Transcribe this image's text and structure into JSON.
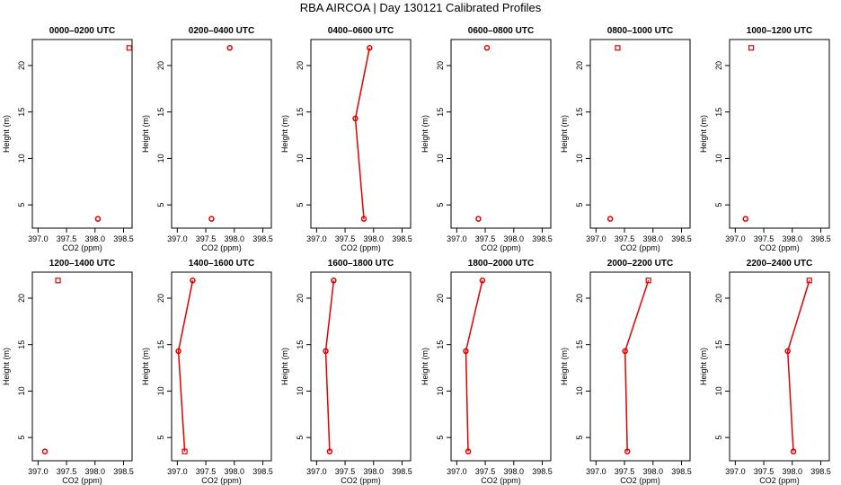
{
  "figure": {
    "title": "RBA AIRCOA  |  Day 130121  Calibrated Profiles",
    "series_color": "#e00000"
  },
  "chart_data": [
    {
      "type": "line",
      "title": "0000–0200 UTC",
      "xlabel": "CO2 (ppm)",
      "ylabel": "Height (m)",
      "xlim": [
        396.9,
        398.65
      ],
      "ylim": [
        2.5,
        22.8
      ],
      "xticks": [
        397.0,
        397.5,
        398.0,
        398.5
      ],
      "yticks": [
        5,
        10,
        15,
        20
      ],
      "points": [
        {
          "x": 398.6,
          "y": 21.9,
          "marker": "square"
        },
        {
          "x": 398.05,
          "y": 3.5,
          "marker": "circle"
        }
      ],
      "connected": false
    },
    {
      "type": "line",
      "title": "0200–0400 UTC",
      "xlabel": "CO2 (ppm)",
      "ylabel": "Height (m)",
      "xlim": [
        396.9,
        398.65
      ],
      "ylim": [
        2.5,
        22.8
      ],
      "xticks": [
        397.0,
        397.5,
        398.0,
        398.5
      ],
      "yticks": [
        5,
        10,
        15,
        20
      ],
      "points": [
        {
          "x": 397.92,
          "y": 21.9,
          "marker": "circle"
        },
        {
          "x": 397.6,
          "y": 3.5,
          "marker": "circle"
        }
      ],
      "connected": false
    },
    {
      "type": "line",
      "title": "0400–0600 UTC",
      "xlabel": "CO2 (ppm)",
      "ylabel": "Height (m)",
      "xlim": [
        396.9,
        398.65
      ],
      "ylim": [
        2.5,
        22.8
      ],
      "xticks": [
        397.0,
        397.5,
        398.0,
        398.5
      ],
      "yticks": [
        5,
        10,
        15,
        20
      ],
      "points": [
        {
          "x": 397.93,
          "y": 21.9,
          "marker": "circle"
        },
        {
          "x": 397.68,
          "y": 14.3,
          "marker": "circle"
        },
        {
          "x": 397.83,
          "y": 3.5,
          "marker": "circle"
        }
      ],
      "connected": true
    },
    {
      "type": "line",
      "title": "0600–0800 UTC",
      "xlabel": "CO2 (ppm)",
      "ylabel": "Height (m)",
      "xlim": [
        396.9,
        398.65
      ],
      "ylim": [
        2.5,
        22.8
      ],
      "xticks": [
        397.0,
        397.5,
        398.0,
        398.5
      ],
      "yticks": [
        5,
        10,
        15,
        20
      ],
      "points": [
        {
          "x": 397.53,
          "y": 21.9,
          "marker": "circle"
        },
        {
          "x": 397.38,
          "y": 3.5,
          "marker": "circle"
        }
      ],
      "connected": false
    },
    {
      "type": "line",
      "title": "0800–1000 UTC",
      "xlabel": "CO2 (ppm)",
      "ylabel": "Height (m)",
      "xlim": [
        396.9,
        398.65
      ],
      "ylim": [
        2.5,
        22.8
      ],
      "xticks": [
        397.0,
        397.5,
        398.0,
        398.5
      ],
      "yticks": [
        5,
        10,
        15,
        20
      ],
      "points": [
        {
          "x": 397.38,
          "y": 21.9,
          "marker": "square"
        },
        {
          "x": 397.25,
          "y": 3.5,
          "marker": "circle"
        }
      ],
      "connected": false
    },
    {
      "type": "line",
      "title": "1000–1200 UTC",
      "xlabel": "CO2 (ppm)",
      "ylabel": "Height (m)",
      "xlim": [
        396.9,
        398.65
      ],
      "ylim": [
        2.5,
        22.8
      ],
      "xticks": [
        397.0,
        397.5,
        398.0,
        398.5
      ],
      "yticks": [
        5,
        10,
        15,
        20
      ],
      "points": [
        {
          "x": 397.28,
          "y": 21.9,
          "marker": "square"
        },
        {
          "x": 397.18,
          "y": 3.5,
          "marker": "circle"
        }
      ],
      "connected": false
    },
    {
      "type": "line",
      "title": "1200–1400 UTC",
      "xlabel": "CO2 (ppm)",
      "ylabel": "Height (m)",
      "xlim": [
        396.9,
        398.65
      ],
      "ylim": [
        2.5,
        22.8
      ],
      "xticks": [
        397.0,
        397.5,
        398.0,
        398.5
      ],
      "yticks": [
        5,
        10,
        15,
        20
      ],
      "points": [
        {
          "x": 397.35,
          "y": 21.9,
          "marker": "square"
        },
        {
          "x": 397.12,
          "y": 3.5,
          "marker": "circle"
        }
      ],
      "connected": false
    },
    {
      "type": "line",
      "title": "1400–1600 UTC",
      "xlabel": "CO2 (ppm)",
      "ylabel": "Height (m)",
      "xlim": [
        396.9,
        398.65
      ],
      "ylim": [
        2.5,
        22.8
      ],
      "xticks": [
        397.0,
        397.5,
        398.0,
        398.5
      ],
      "yticks": [
        5,
        10,
        15,
        20
      ],
      "points": [
        {
          "x": 397.27,
          "y": 21.9,
          "marker": "circle"
        },
        {
          "x": 397.02,
          "y": 14.3,
          "marker": "circle"
        },
        {
          "x": 397.13,
          "y": 3.5,
          "marker": "square"
        }
      ],
      "connected": true
    },
    {
      "type": "line",
      "title": "1600–1800 UTC",
      "xlabel": "CO2 (ppm)",
      "ylabel": "Height (m)",
      "xlim": [
        396.9,
        398.65
      ],
      "ylim": [
        2.5,
        22.8
      ],
      "xticks": [
        397.0,
        397.5,
        398.0,
        398.5
      ],
      "yticks": [
        5,
        10,
        15,
        20
      ],
      "points": [
        {
          "x": 397.3,
          "y": 21.9,
          "marker": "circle"
        },
        {
          "x": 397.16,
          "y": 14.3,
          "marker": "circle"
        },
        {
          "x": 397.23,
          "y": 3.5,
          "marker": "circle"
        }
      ],
      "connected": true
    },
    {
      "type": "line",
      "title": "1800–2000 UTC",
      "xlabel": "CO2 (ppm)",
      "ylabel": "Height (m)",
      "xlim": [
        396.9,
        398.65
      ],
      "ylim": [
        2.5,
        22.8
      ],
      "xticks": [
        397.0,
        397.5,
        398.0,
        398.5
      ],
      "yticks": [
        5,
        10,
        15,
        20
      ],
      "points": [
        {
          "x": 397.45,
          "y": 21.9,
          "marker": "circle"
        },
        {
          "x": 397.16,
          "y": 14.3,
          "marker": "circle"
        },
        {
          "x": 397.2,
          "y": 3.5,
          "marker": "circle"
        }
      ],
      "connected": true
    },
    {
      "type": "line",
      "title": "2000–2200 UTC",
      "xlabel": "CO2 (ppm)",
      "ylabel": "Height (m)",
      "xlim": [
        396.9,
        398.65
      ],
      "ylim": [
        2.5,
        22.8
      ],
      "xticks": [
        397.0,
        397.5,
        398.0,
        398.5
      ],
      "yticks": [
        5,
        10,
        15,
        20
      ],
      "points": [
        {
          "x": 397.92,
          "y": 21.9,
          "marker": "square"
        },
        {
          "x": 397.51,
          "y": 14.3,
          "marker": "circle"
        },
        {
          "x": 397.55,
          "y": 3.5,
          "marker": "circle"
        }
      ],
      "connected": true
    },
    {
      "type": "line",
      "title": "2200–2400 UTC",
      "xlabel": "CO2 (ppm)",
      "ylabel": "Height (m)",
      "xlim": [
        396.9,
        398.65
      ],
      "ylim": [
        2.5,
        22.8
      ],
      "xticks": [
        397.0,
        397.5,
        398.0,
        398.5
      ],
      "yticks": [
        5,
        10,
        15,
        20
      ],
      "points": [
        {
          "x": 398.3,
          "y": 21.9,
          "marker": "square"
        },
        {
          "x": 397.92,
          "y": 14.3,
          "marker": "circle"
        },
        {
          "x": 398.02,
          "y": 3.5,
          "marker": "circle"
        }
      ],
      "connected": true
    }
  ]
}
